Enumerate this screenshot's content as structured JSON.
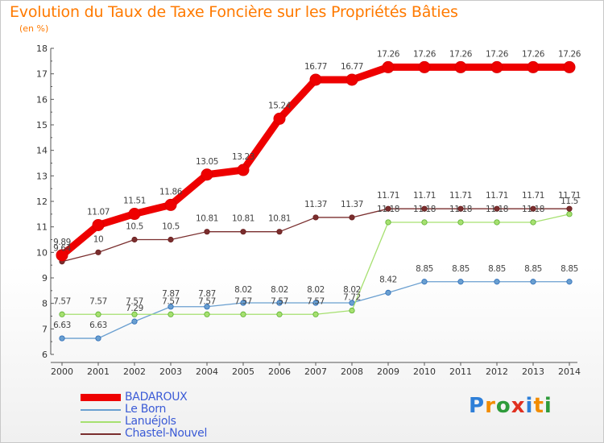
{
  "title": "Evolution du Taux de Taxe Foncière sur les Propriétés Bâties",
  "subtitle": "(en %)",
  "logo": {
    "text": "Proxiti",
    "letters": [
      "P",
      "r",
      "o",
      "x",
      "i",
      "t",
      "i"
    ],
    "colors": [
      "#2e7fd8",
      "#f28c00",
      "#2e9b3a",
      "#e03020",
      "#2e7fd8",
      "#f28c00",
      "#2e9b3a"
    ]
  },
  "chart_data": {
    "type": "line",
    "title": "Evolution du Taux de Taxe Foncière sur les Propriétés Bâties",
    "ylabel": "(en %)",
    "xlabel": "",
    "ylim": [
      6,
      18
    ],
    "yticks": [
      "6",
      "7",
      "8",
      "9",
      "10",
      "11",
      "12",
      "13",
      "14",
      "15",
      "16",
      "17",
      "18"
    ],
    "categories": [
      "2000",
      "2001",
      "2002",
      "2003",
      "2004",
      "2005",
      "2006",
      "2007",
      "2008",
      "2009",
      "2010",
      "2011",
      "2012",
      "2013",
      "2014"
    ],
    "grid": false,
    "legend_position": "bottom-left",
    "series": [
      {
        "name": "BADAROUX",
        "color": "#ee0000",
        "values": [
          9.89,
          11.07,
          11.51,
          11.86,
          13.05,
          13.23,
          15.24,
          16.77,
          16.77,
          17.26,
          17.26,
          17.26,
          17.26,
          17.26,
          17.26
        ],
        "labels": [
          "9.89",
          "11.07",
          "11.51",
          "11.86",
          "13.05",
          "13.23",
          "15.24",
          "16.77",
          "16.77",
          "17.26",
          "17.26",
          "17.26",
          "17.26",
          "17.26",
          "17.26"
        ]
      },
      {
        "name": "Le Born",
        "color": "#6a9fd0",
        "values": [
          6.63,
          6.63,
          7.29,
          7.87,
          7.87,
          8.02,
          8.02,
          8.02,
          8.02,
          8.42,
          8.85,
          8.85,
          8.85,
          8.85,
          8.85
        ],
        "labels": [
          "6.63",
          "6.63",
          "7.29",
          "7.87",
          "7.87",
          "8.02",
          "8.02",
          "8.02",
          "8.02",
          "8.42",
          "8.85",
          "8.85",
          "8.85",
          "8.85",
          "8.85"
        ]
      },
      {
        "name": "Lanuéjols",
        "color": "#a6e070",
        "values": [
          7.57,
          7.57,
          7.57,
          7.57,
          7.57,
          7.57,
          7.57,
          7.57,
          7.72,
          11.18,
          11.18,
          11.18,
          11.18,
          11.18,
          11.5
        ],
        "labels": [
          "7.57",
          "7.57",
          "7.57",
          "7.57",
          "7.57",
          "7.57",
          "7.57",
          "7.57",
          "7.72",
          "11.18",
          "11.18",
          "11.18",
          "11.18",
          "11.18",
          "11.5"
        ]
      },
      {
        "name": "Chastel-Nouvel",
        "color": "#7a2e2e",
        "values": [
          9.64,
          10,
          10.5,
          10.5,
          10.81,
          10.81,
          10.81,
          11.37,
          11.37,
          11.71,
          11.71,
          11.71,
          11.71,
          11.71,
          11.71
        ],
        "labels": [
          "9.64",
          "10",
          "10.5",
          "10.5",
          "10.81",
          "10.81",
          "10.81",
          "11.37",
          "11.37",
          "11.71",
          "11.71",
          "11.71",
          "11.71",
          "11.71",
          "11.71"
        ]
      }
    ]
  }
}
